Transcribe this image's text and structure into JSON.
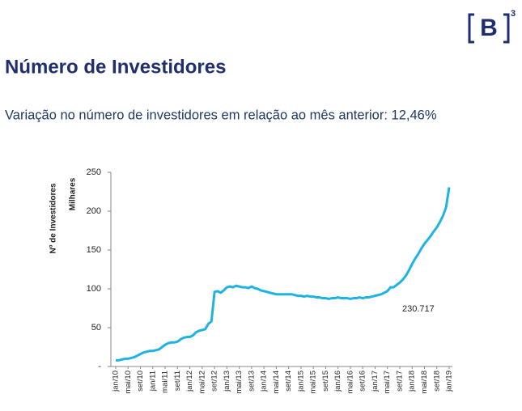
{
  "logo": {
    "letter": "B",
    "superscript": "3"
  },
  "chart_data": {
    "type": "line",
    "title": "Número de Investidores",
    "subtitle": "Variação no número de investidores em relação ao mês anterior: 12,46%",
    "y_label": "Nº de Investidores",
    "y_unit": "Milhares",
    "annotation": "230.717",
    "categories": [
      "jan/10",
      null,
      null,
      null,
      "mai/10",
      null,
      null,
      null,
      "set/10",
      null,
      null,
      null,
      "jan/11",
      null,
      null,
      null,
      "mai/11",
      null,
      null,
      null,
      "set/11",
      null,
      null,
      null,
      "jan/12",
      null,
      null,
      null,
      "mai/12",
      null,
      null,
      null,
      "set/12",
      null,
      null,
      null,
      "jan/13",
      null,
      null,
      null,
      "mai/13",
      null,
      null,
      null,
      "set/13",
      null,
      null,
      null,
      "jan/14",
      null,
      null,
      null,
      "mai/14",
      null,
      null,
      null,
      "set/14",
      null,
      null,
      null,
      "jan/15",
      null,
      null,
      null,
      "mai/15",
      null,
      null,
      null,
      "set/15",
      null,
      null,
      null,
      "jan/16",
      null,
      null,
      null,
      "mai/16",
      null,
      null,
      null,
      "set/16",
      null,
      null,
      null,
      "jan/17",
      null,
      null,
      null,
      "mai/17",
      null,
      null,
      null,
      "set/17",
      null,
      null,
      null,
      "jan/18",
      null,
      null,
      null,
      "mai/18",
      null,
      null,
      null,
      "set/18",
      null,
      null,
      null,
      "jan/19"
    ],
    "series": [
      {
        "name": "Nº de Investidores",
        "color": "#1fb3e5",
        "values": [
          8,
          8,
          9,
          10,
          10,
          11,
          12,
          14,
          16,
          18,
          19,
          20,
          20,
          21,
          22,
          25,
          28,
          30,
          31,
          31,
          32,
          35,
          37,
          38,
          38,
          40,
          44,
          46,
          47,
          48,
          55,
          58,
          96,
          97,
          95,
          98,
          102,
          103,
          102,
          104,
          103,
          102,
          102,
          101,
          103,
          101,
          100,
          98,
          97,
          96,
          95,
          94,
          93,
          93,
          93,
          93,
          93,
          93,
          92,
          91,
          91,
          90,
          91,
          90,
          90,
          89,
          89,
          88,
          88,
          87,
          88,
          88,
          89,
          88,
          88,
          88,
          87,
          88,
          88,
          89,
          88,
          89,
          89,
          90,
          91,
          92,
          93,
          95,
          97,
          102,
          102,
          105,
          108,
          112,
          117,
          124,
          132,
          139,
          145,
          152,
          158,
          163,
          168,
          174,
          179,
          186,
          194,
          205,
          230.717
        ]
      }
    ],
    "ylim": [
      0,
      250
    ],
    "yticks": [
      {
        "value": 0,
        "label": "-"
      },
      50,
      100,
      150,
      200,
      250
    ],
    "grid": false
  }
}
